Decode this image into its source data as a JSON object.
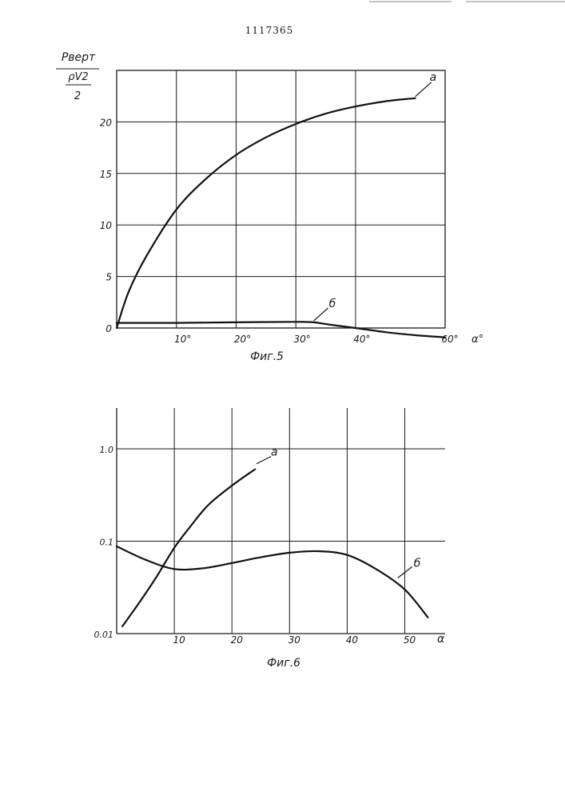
{
  "header": {
    "patent_number": "1117365"
  },
  "chart_data": [
    {
      "type": "line",
      "caption": "Фиг.5",
      "ylabel": {
        "top": "Pверт",
        "middle": "ρV2",
        "bottom": "2"
      },
      "xlabel": "α°",
      "xlim": [
        0,
        55
      ],
      "ylim": [
        0,
        25
      ],
      "x_ticks": [
        {
          "value": 10,
          "label": "10°"
        },
        {
          "value": 20,
          "label": "20°"
        },
        {
          "value": 30,
          "label": "30°"
        },
        {
          "value": 40,
          "label": "40°"
        },
        {
          "value": 60,
          "label": "60°"
        }
      ],
      "y_ticks": [
        {
          "value": 0,
          "label": "0"
        },
        {
          "value": 5,
          "label": "5"
        },
        {
          "value": 10,
          "label": "10"
        },
        {
          "value": 15,
          "label": "15"
        },
        {
          "value": 20,
          "label": "20"
        }
      ],
      "series": [
        {
          "name": "а",
          "x": [
            0,
            2,
            5,
            10,
            15,
            20,
            25,
            30,
            35,
            40,
            45,
            50
          ],
          "y": [
            0,
            3.5,
            7,
            11.5,
            14.5,
            16.8,
            18.5,
            19.8,
            20.8,
            21.5,
            22.0,
            22.3
          ]
        },
        {
          "name": "б",
          "x": [
            0,
            5,
            10,
            20,
            30,
            33,
            36,
            40,
            45,
            50,
            55
          ],
          "y": [
            0.5,
            0.5,
            0.5,
            0.55,
            0.6,
            0.55,
            0.3,
            0.0,
            -0.4,
            -0.7,
            -0.9
          ]
        }
      ]
    },
    {
      "type": "line",
      "caption": "Фиг.6",
      "xlabel": "α",
      "yscale": "log",
      "xlim": [
        0,
        57
      ],
      "ylim": [
        0.01,
        2
      ],
      "x_ticks": [
        {
          "value": 10,
          "label": "10"
        },
        {
          "value": 20,
          "label": "20"
        },
        {
          "value": 30,
          "label": "30"
        },
        {
          "value": 40,
          "label": "40"
        },
        {
          "value": 50,
          "label": "50"
        }
      ],
      "y_ticks": [
        {
          "value": 0.01,
          "label": "0.01"
        },
        {
          "value": 0.1,
          "label": "0.1"
        },
        {
          "value": 1.0,
          "label": "1.0"
        }
      ],
      "series": [
        {
          "name": "а",
          "x": [
            1,
            4,
            7,
            10,
            13,
            16,
            20,
            24
          ],
          "y": [
            0.012,
            0.022,
            0.042,
            0.085,
            0.15,
            0.25,
            0.4,
            0.6
          ]
        },
        {
          "name": "б",
          "x": [
            0,
            5,
            10,
            15,
            20,
            25,
            30,
            35,
            40,
            45,
            50,
            54
          ],
          "y": [
            0.088,
            0.063,
            0.05,
            0.051,
            0.058,
            0.067,
            0.075,
            0.078,
            0.071,
            0.05,
            0.03,
            0.015
          ]
        }
      ]
    }
  ]
}
